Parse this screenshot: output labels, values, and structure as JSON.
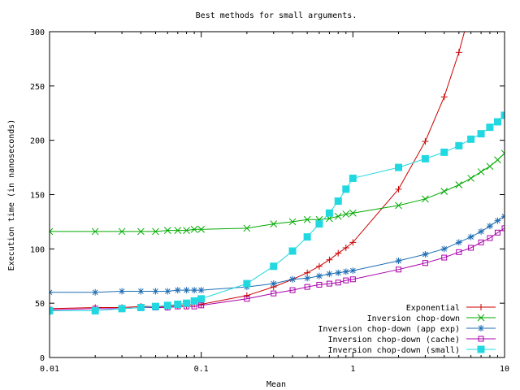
{
  "chart_data": {
    "type": "line",
    "title": "Best methods for small arguments.",
    "xlabel": "Mean",
    "ylabel": "Execution time (in nanoseconds)",
    "xscale": "log",
    "xlim": [
      0.01,
      10
    ],
    "ylim": [
      0,
      300
    ],
    "xticks": [
      {
        "value": 0.01,
        "label": "0.01"
      },
      {
        "value": 0.1,
        "label": "0.1"
      },
      {
        "value": 1,
        "label": "1"
      },
      {
        "value": 10,
        "label": "10"
      }
    ],
    "yticks": [
      0,
      50,
      100,
      150,
      200,
      250,
      300
    ],
    "legend_position": "bottom-right",
    "series": [
      {
        "name": "Exponential",
        "color": "#cc0000",
        "marker": "plus",
        "x": [
          0.01,
          0.02,
          0.03,
          0.04,
          0.05,
          0.06,
          0.07,
          0.08,
          0.09,
          0.1,
          0.2,
          0.3,
          0.4,
          0.5,
          0.6,
          0.7,
          0.8,
          0.9,
          1,
          2,
          3,
          4,
          5,
          6
        ],
        "y": [
          45,
          46,
          46,
          47,
          47,
          47,
          48,
          48,
          49,
          49,
          57,
          65,
          72,
          78,
          84,
          90,
          96,
          101,
          106,
          155,
          199,
          240,
          281,
          322
        ]
      },
      {
        "name": "Inversion chop-down",
        "color": "#00aa00",
        "marker": "x",
        "x": [
          0.01,
          0.02,
          0.03,
          0.04,
          0.05,
          0.06,
          0.07,
          0.08,
          0.09,
          0.1,
          0.2,
          0.3,
          0.4,
          0.5,
          0.6,
          0.7,
          0.8,
          0.9,
          1,
          2,
          3,
          4,
          5,
          6,
          7,
          8,
          9,
          10
        ],
        "y": [
          116,
          116,
          116,
          116,
          116,
          117,
          117,
          117,
          118,
          118,
          119,
          123,
          125,
          127,
          127,
          128,
          130,
          132,
          133,
          140,
          146,
          153,
          159,
          165,
          171,
          176,
          182,
          188
        ]
      },
      {
        "name": "Inversion chop-down (app exp)",
        "color": "#1e6eb4",
        "marker": "star",
        "x": [
          0.01,
          0.02,
          0.03,
          0.04,
          0.05,
          0.06,
          0.07,
          0.08,
          0.09,
          0.1,
          0.2,
          0.3,
          0.4,
          0.5,
          0.6,
          0.7,
          0.8,
          0.9,
          1,
          2,
          3,
          4,
          5,
          6,
          7,
          8,
          9,
          10
        ],
        "y": [
          60,
          60,
          61,
          61,
          61,
          61,
          62,
          62,
          62,
          62,
          65,
          68,
          72,
          73,
          75,
          77,
          78,
          79,
          80,
          89,
          95,
          100,
          106,
          111,
          116,
          121,
          126,
          130
        ]
      },
      {
        "name": "Inversion chop-down (cache)",
        "color": "#aa00aa",
        "marker": "square",
        "x": [
          0.01,
          0.02,
          0.03,
          0.04,
          0.05,
          0.06,
          0.07,
          0.08,
          0.09,
          0.1,
          0.2,
          0.3,
          0.4,
          0.5,
          0.6,
          0.7,
          0.8,
          0.9,
          1,
          2,
          3,
          4,
          5,
          6,
          7,
          8,
          9,
          10
        ],
        "y": [
          44,
          45,
          45,
          46,
          46,
          46,
          47,
          47,
          47,
          48,
          54,
          59,
          62,
          65,
          67,
          68,
          69,
          71,
          72,
          81,
          87,
          92,
          97,
          101,
          106,
          110,
          115,
          119
        ]
      },
      {
        "name": "Inversion chop-down (small)",
        "color": "#22d8e0",
        "marker": "filled-square",
        "x": [
          0.01,
          0.02,
          0.03,
          0.04,
          0.05,
          0.06,
          0.07,
          0.08,
          0.09,
          0.1,
          0.2,
          0.3,
          0.4,
          0.5,
          0.6,
          0.7,
          0.8,
          0.9,
          1,
          2,
          3,
          4,
          5,
          6,
          7,
          8,
          9,
          10
        ],
        "y": [
          43,
          43,
          45,
          46,
          47,
          48,
          49,
          50,
          52,
          54,
          68,
          84,
          98,
          111,
          123,
          133,
          144,
          155,
          165,
          175,
          183,
          189,
          195,
          201,
          206,
          212,
          217,
          223
        ]
      }
    ]
  }
}
